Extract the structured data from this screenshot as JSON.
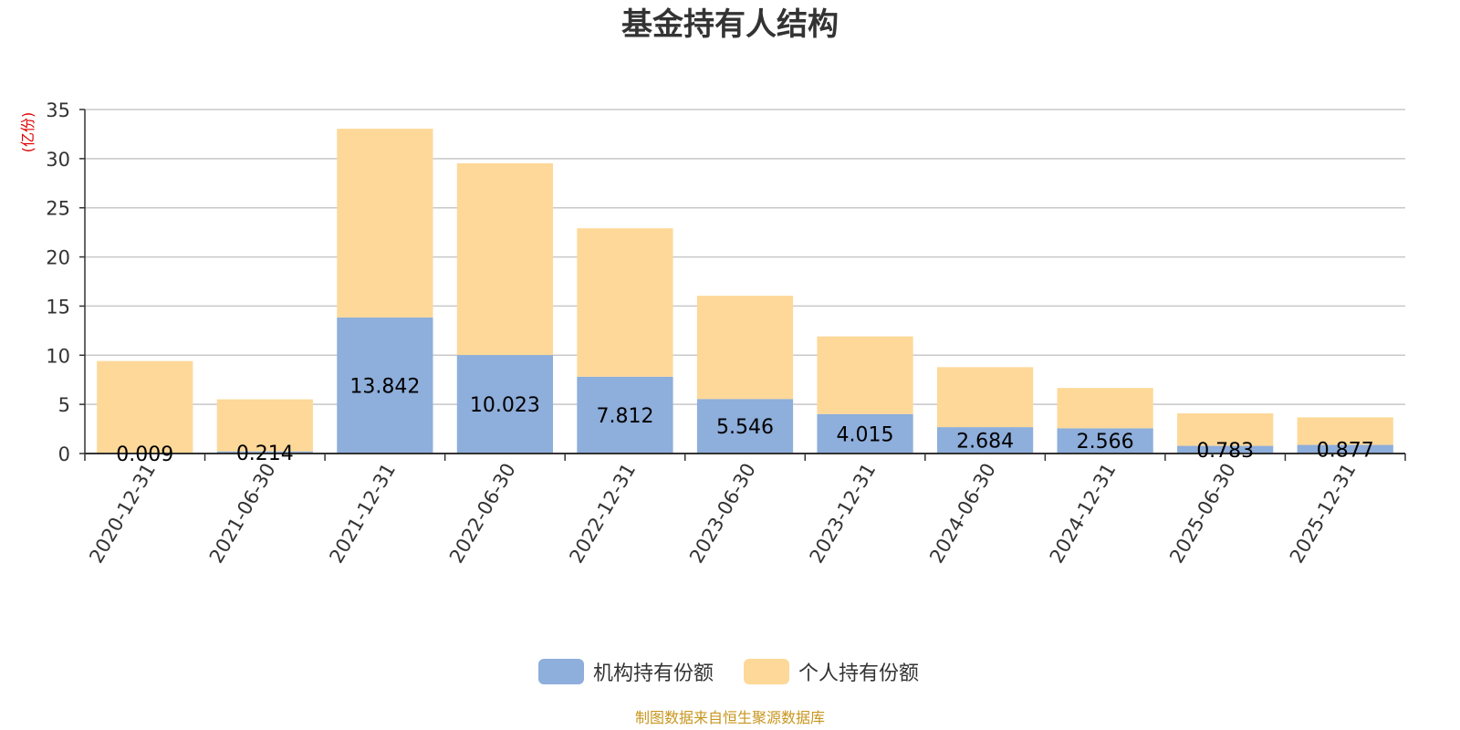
{
  "chart_data": {
    "type": "bar",
    "stacked": true,
    "title": "基金持有人结构",
    "ylabel": "(亿份)",
    "ylim": [
      0,
      35
    ],
    "yticks": [
      0,
      5,
      10,
      15,
      20,
      25,
      30,
      35
    ],
    "grid": true,
    "legend_position": "bottom-center",
    "categories": [
      "2020-12-31",
      "2021-06-30",
      "2021-12-31",
      "2022-06-30",
      "2022-12-31",
      "2023-06-30",
      "2023-12-31",
      "2024-06-30",
      "2024-12-31",
      "2025-06-30",
      "2025-12-31"
    ],
    "series": [
      {
        "name": "机构持有份额",
        "color": "#8eaedb",
        "values": [
          0.009,
          0.214,
          13.842,
          10.023,
          7.812,
          5.546,
          4.015,
          2.684,
          2.566,
          0.783,
          0.877
        ],
        "labels": [
          "0.009",
          "0.214",
          "13.842",
          "10.023",
          "7.812",
          "5.546",
          "4.015",
          "2.684",
          "2.566",
          "0.783",
          "0.877"
        ]
      },
      {
        "name": "个人持有份额",
        "color": "#fdd898",
        "values": [
          9.4,
          5.3,
          19.2,
          19.5,
          15.1,
          10.5,
          7.9,
          6.1,
          4.1,
          3.3,
          2.8
        ]
      }
    ],
    "source": "制图数据来自恒生聚源数据库"
  }
}
